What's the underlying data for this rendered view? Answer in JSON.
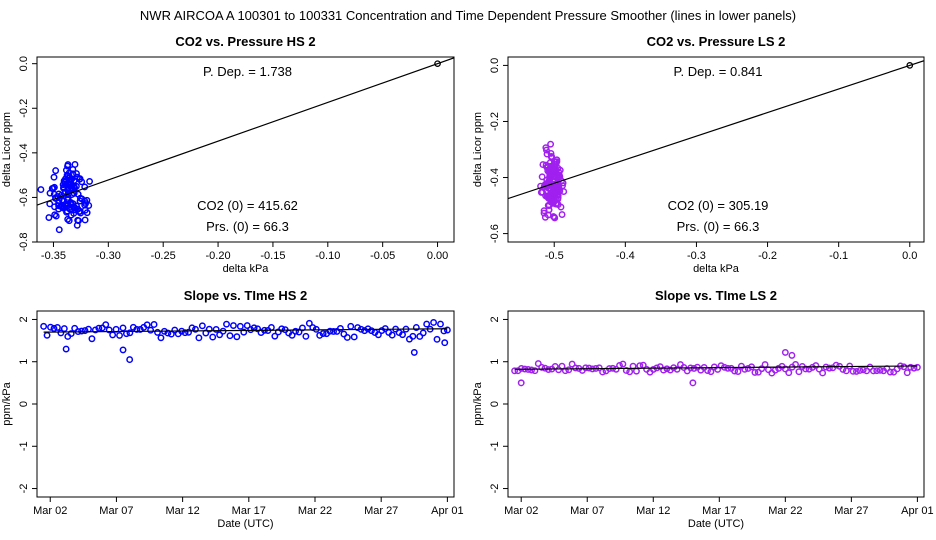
{
  "figure_title": "NWR   AIRCOA A   100301 to 100331   Concentration and Time Dependent Pressure Smoother (lines in lower panels)",
  "chart_data": [
    {
      "id": "p1",
      "type": "scatter",
      "title": "CO2 vs. Pressure HS 2",
      "xlabel": "delta kPa",
      "ylabel": "delta Licor ppm",
      "xlim": [
        -0.365,
        0.015
      ],
      "ylim": [
        -0.8,
        0.03
      ],
      "xticks": [
        -0.35,
        -0.3,
        -0.25,
        -0.2,
        -0.15,
        -0.1,
        -0.05,
        0.0
      ],
      "xtick_labels": [
        "-0.35",
        "-0.30",
        "-0.25",
        "-0.20",
        "-0.15",
        "-0.10",
        "-0.05",
        "0.00"
      ],
      "yticks": [
        0.0,
        -0.2,
        -0.4,
        -0.6,
        -0.8
      ],
      "ytick_labels": [
        "0.0",
        "-0.2",
        "-0.4",
        "-0.6",
        "-0.8"
      ],
      "color": "#0000ff",
      "fit_line": {
        "slope": 1.738,
        "intercept": 0.0
      },
      "origin_point": [
        0,
        0
      ],
      "cloud": {
        "n": 120,
        "x_center": -0.336,
        "x_spread": 0.022,
        "y_center": -0.6,
        "y_spread": 0.17,
        "seed": 11
      },
      "annotations": {
        "dep": "P. Dep. =  1.738",
        "co2": "CO2 (0) =  415.62",
        "prs": "Prs. (0) =  66.3"
      }
    },
    {
      "id": "p2",
      "type": "scatter",
      "title": "CO2 vs. Pressure LS 2",
      "xlabel": "delta kPa",
      "ylabel": "delta Licor ppm",
      "xlim": [
        -0.565,
        0.02
      ],
      "ylim": [
        -0.63,
        0.03
      ],
      "xticks": [
        -0.5,
        -0.4,
        -0.3,
        -0.2,
        -0.1,
        0.0
      ],
      "xtick_labels": [
        "-0.5",
        "-0.4",
        "-0.3",
        "-0.2",
        "-0.1",
        "0.0"
      ],
      "yticks": [
        0.0,
        -0.2,
        -0.4,
        -0.6
      ],
      "ytick_labels": [
        "0.0",
        "-0.2",
        "-0.4",
        "-0.6"
      ],
      "color": "#a020f0",
      "fit_line": {
        "slope": 0.841,
        "intercept": 0.0
      },
      "origin_point": [
        0,
        0
      ],
      "cloud": {
        "n": 150,
        "x_center": -0.503,
        "x_spread": 0.016,
        "y_center": -0.42,
        "y_spread": 0.16,
        "seed": 23
      },
      "annotations": {
        "dep": "P. Dep. =  0.841",
        "co2": "CO2 (0) =  305.19",
        "prs": "Prs. (0) =  66.3"
      }
    },
    {
      "id": "p3",
      "type": "scatter",
      "title": "Slope vs. TIme HS 2",
      "xlabel": "Date (UTC)",
      "ylabel": "ppm/kPa",
      "xlim": [
        0,
        31.5
      ],
      "ylim": [
        -2.2,
        2.2
      ],
      "xticks": [
        1,
        6,
        11,
        16,
        21,
        26,
        31
      ],
      "xtick_labels": [
        "Mar 02",
        "Mar 07",
        "Mar 12",
        "Mar 17",
        "Mar 22",
        "Mar 27",
        "Apr 01"
      ],
      "yticks": [
        2,
        1,
        0,
        -1,
        -2
      ],
      "ytick_labels": [
        "2",
        "1",
        "0",
        "-1",
        "-2"
      ],
      "color": "#0000ff",
      "smoother": [
        [
          0.5,
          1.7
        ],
        [
          31.0,
          1.78
        ]
      ],
      "series": {
        "n": 118,
        "x_start": 0.5,
        "x_end": 31.0,
        "mean": 1.73,
        "spread": 0.22,
        "seed": 7
      },
      "extra_points": [
        [
          7.0,
          1.05
        ],
        [
          6.5,
          1.28
        ],
        [
          28.5,
          1.22
        ],
        [
          2.2,
          1.3
        ],
        [
          30.8,
          1.45
        ]
      ]
    },
    {
      "id": "p4",
      "type": "scatter",
      "title": "Slope vs. TIme LS 2",
      "xlabel": "Date (UTC)",
      "ylabel": "ppm/kPa",
      "xlim": [
        0,
        31.5
      ],
      "ylim": [
        -2.2,
        2.2
      ],
      "xticks": [
        1,
        6,
        11,
        16,
        21,
        26,
        31
      ],
      "xtick_labels": [
        "Mar 02",
        "Mar 07",
        "Mar 12",
        "Mar 17",
        "Mar 22",
        "Mar 27",
        "Apr 01"
      ],
      "yticks": [
        2,
        1,
        0,
        -1,
        -2
      ],
      "ytick_labels": [
        "2",
        "1",
        "0",
        "-1",
        "-2"
      ],
      "color": "#a020f0",
      "smoother": [
        [
          0.5,
          0.82
        ],
        [
          31.0,
          0.9
        ]
      ],
      "series": {
        "n": 120,
        "x_start": 0.5,
        "x_end": 31.0,
        "mean": 0.84,
        "spread": 0.14,
        "seed": 19
      },
      "extra_points": [
        [
          21.0,
          1.22
        ],
        [
          1.0,
          0.5
        ],
        [
          14.0,
          0.5
        ],
        [
          21.5,
          1.15
        ]
      ]
    }
  ]
}
